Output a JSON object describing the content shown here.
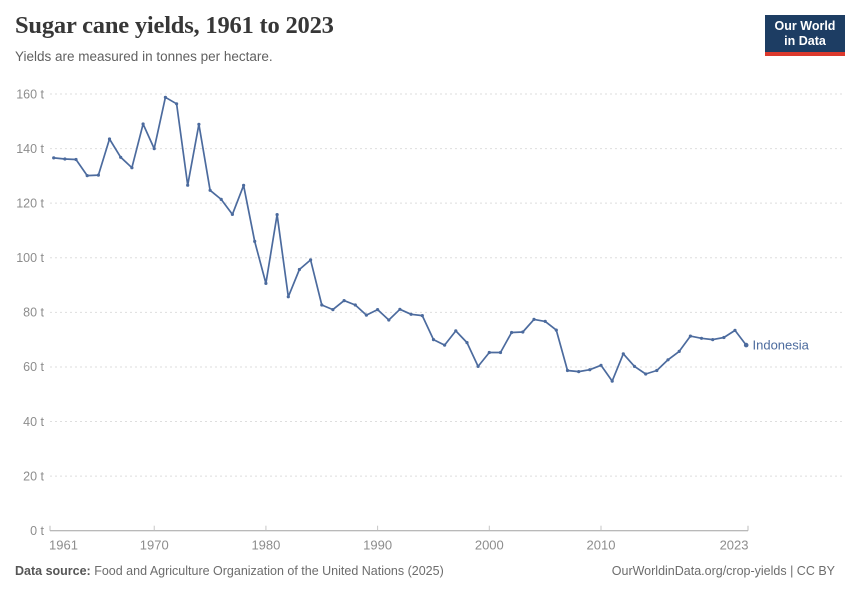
{
  "header": {
    "title": "Sugar cane yields, 1961 to 2023",
    "subtitle": "Yields are measured in tonnes per hectare."
  },
  "logo": {
    "line1": "Our World",
    "line2": "in Data",
    "bg_color": "#1d3d63",
    "accent_color": "#dc392d"
  },
  "chart_data": {
    "type": "line",
    "title": "Sugar cane yields, 1961 to 2023",
    "ylabel": "tonnes per hectare",
    "unit": "t",
    "xlim": [
      1961,
      2023
    ],
    "ylim": [
      0,
      160
    ],
    "yticks": [
      0,
      20,
      40,
      60,
      80,
      100,
      120,
      140,
      160
    ],
    "xticks": [
      1961,
      1970,
      1980,
      1990,
      2000,
      2010,
      2023
    ],
    "grid": "horizontal-dashed",
    "legend_position": "end-of-line",
    "series": [
      {
        "name": "Indonesia",
        "color": "#4c6b9e",
        "x": [
          1961,
          1962,
          1963,
          1964,
          1965,
          1966,
          1967,
          1968,
          1969,
          1970,
          1971,
          1972,
          1973,
          1974,
          1975,
          1976,
          1977,
          1978,
          1979,
          1980,
          1981,
          1982,
          1983,
          1984,
          1985,
          1986,
          1987,
          1988,
          1989,
          1990,
          1991,
          1992,
          1993,
          1994,
          1995,
          1996,
          1997,
          1998,
          1999,
          2000,
          2001,
          2002,
          2003,
          2004,
          2005,
          2006,
          2007,
          2008,
          2009,
          2010,
          2011,
          2012,
          2013,
          2014,
          2015,
          2016,
          2017,
          2018,
          2019,
          2020,
          2021,
          2022,
          2023
        ],
        "values": [
          136.6,
          136.2,
          136.0,
          130.1,
          130.3,
          143.5,
          136.8,
          133.0,
          149.0,
          140.0,
          158.8,
          156.4,
          126.6,
          148.9,
          124.7,
          121.4,
          115.9,
          126.5,
          106.0,
          90.6,
          115.8,
          85.7,
          95.7,
          99.2,
          82.7,
          81.0,
          84.3,
          82.7,
          79.0,
          81.0,
          77.2,
          81.1,
          79.3,
          78.8,
          70.0,
          68.0,
          73.2,
          68.9,
          60.2,
          65.3,
          65.3,
          72.6,
          72.8,
          77.4,
          76.7,
          73.5,
          58.7,
          58.3,
          59.0,
          60.6,
          54.8,
          64.8,
          60.2,
          57.4,
          58.7,
          62.6,
          65.7,
          71.3,
          70.5,
          70.0,
          70.8,
          73.4,
          68.0
        ]
      }
    ]
  },
  "footer": {
    "source_label": "Data source:",
    "source_text": "Food and Agriculture Organization of the United Nations (2025)",
    "attribution": "OurWorldinData.org/crop-yields | CC BY"
  }
}
